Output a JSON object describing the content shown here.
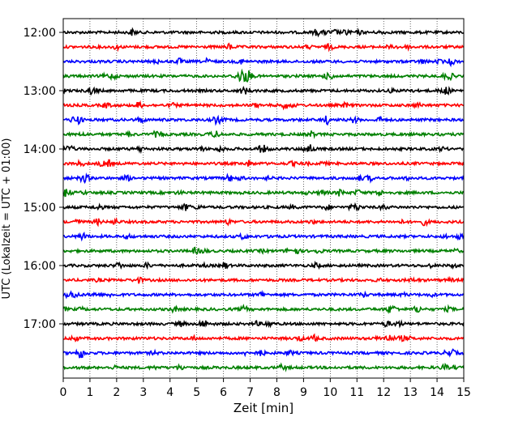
{
  "chart_data": {
    "type": "line",
    "title": "",
    "xlabel": "Zeit  [min]",
    "ylabel": "UTC (Lokalzeit = UTC + 01:00)",
    "xlim": [
      0,
      15
    ],
    "x_ticks": [
      "0",
      "1",
      "2",
      "3",
      "4",
      "5",
      "6",
      "7",
      "8",
      "9",
      "10",
      "11",
      "12",
      "13",
      "14",
      "15"
    ],
    "y_ticks": [
      "12:00",
      "13:00",
      "14:00",
      "15:00",
      "16:00",
      "17:00"
    ],
    "grid": "vertical-dotted",
    "trace_interval_minutes": 15,
    "first_trace": "12:00",
    "trace_count": 24,
    "colors": [
      "#000000",
      "#ff0000",
      "#0000ff",
      "#008000"
    ]
  }
}
